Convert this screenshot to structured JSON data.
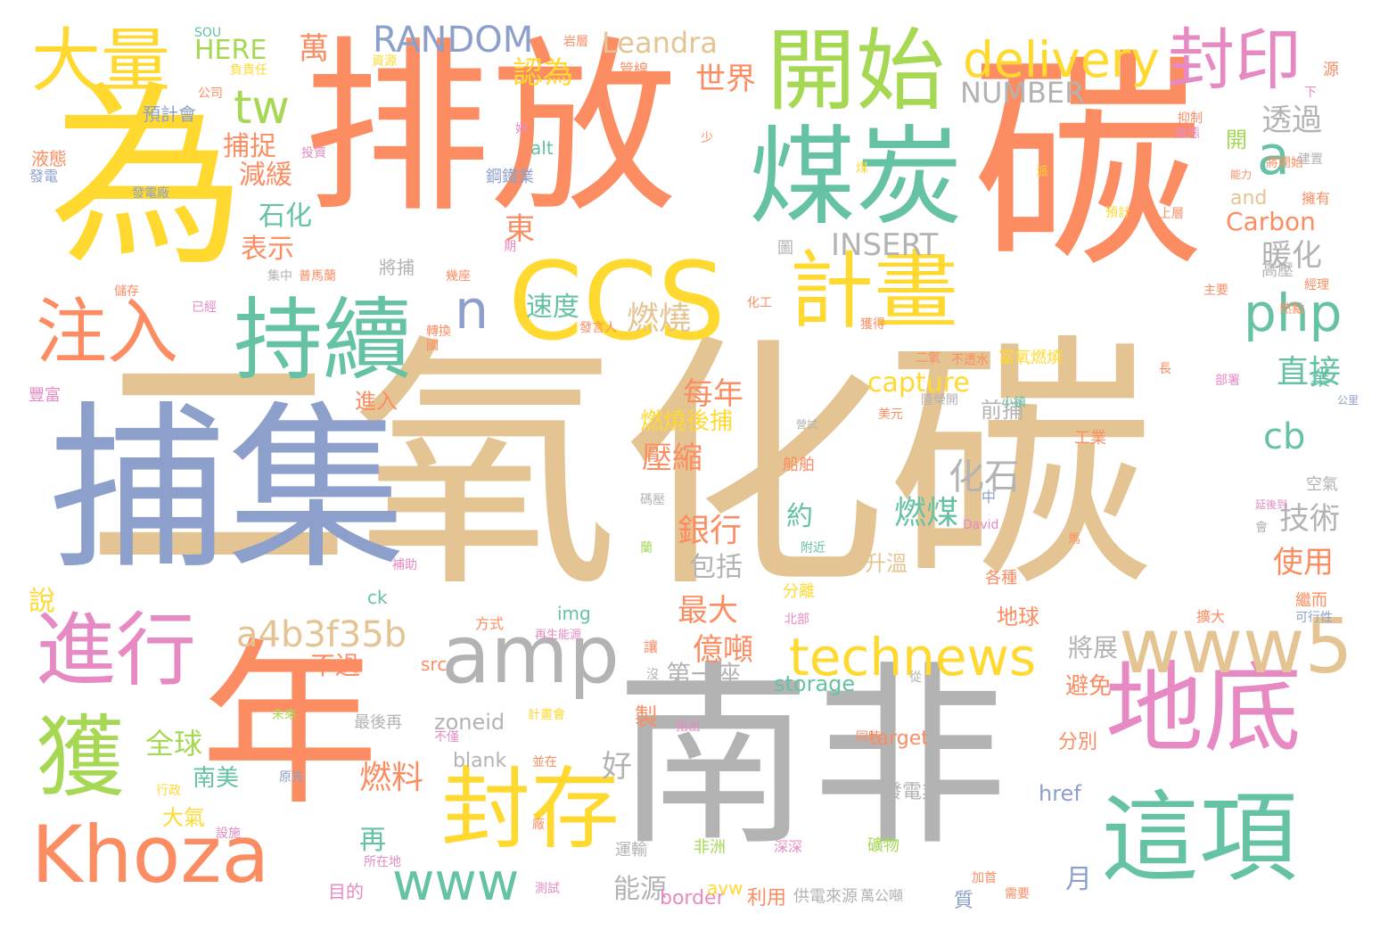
{
  "palette": {
    "orange": "#fc8d62",
    "yellow": "#ffd92f",
    "tan": "#e5c494",
    "blue": "#8da0cb",
    "green": "#a6d854",
    "teal": "#66c2a5",
    "pink": "#e78ac3",
    "gray": "#b3b3b3"
  },
  "words": [
    {
      "text": "二氧化碳",
      "color": "tan"
    },
    {
      "text": "排放",
      "color": "orange"
    },
    {
      "text": "碳",
      "color": "orange"
    },
    {
      "text": "為",
      "color": "yellow"
    },
    {
      "text": "捕集",
      "color": "blue"
    },
    {
      "text": "南非",
      "color": "gray"
    },
    {
      "text": "年",
      "color": "orange"
    },
    {
      "text": "CCS",
      "color": "yellow"
    },
    {
      "text": "煤炭",
      "color": "teal"
    },
    {
      "text": "開始",
      "color": "green"
    },
    {
      "text": "持續",
      "color": "teal"
    },
    {
      "text": "計畫",
      "color": "yellow"
    },
    {
      "text": "地底",
      "color": "pink"
    },
    {
      "text": "這項",
      "color": "teal"
    },
    {
      "text": "封存",
      "color": "yellow"
    },
    {
      "text": "Khoza",
      "color": "orange"
    },
    {
      "text": "amp",
      "color": "gray"
    },
    {
      "text": "www5",
      "color": "tan"
    },
    {
      "text": "進行",
      "color": "pink"
    },
    {
      "text": "獲",
      "color": "green"
    },
    {
      "text": "注入",
      "color": "orange"
    },
    {
      "text": "大量",
      "color": "yellow"
    },
    {
      "text": "封印",
      "color": "pink"
    },
    {
      "text": "delivery",
      "color": "yellow"
    },
    {
      "text": "technews",
      "color": "yellow"
    },
    {
      "text": "a4b3f35b",
      "color": "tan"
    },
    {
      "text": "www",
      "color": "teal"
    },
    {
      "text": "php",
      "color": "teal"
    },
    {
      "text": "a",
      "color": "teal"
    },
    {
      "text": "tw",
      "color": "green"
    },
    {
      "text": "RANDOM",
      "color": "blue"
    },
    {
      "text": "Leandra",
      "color": "tan"
    },
    {
      "text": "NUMBER",
      "color": "gray"
    },
    {
      "text": "INSERT",
      "color": "gray"
    },
    {
      "text": "Carbon",
      "color": "orange"
    },
    {
      "text": "capture",
      "color": "yellow"
    },
    {
      "text": "cb",
      "color": "teal"
    },
    {
      "text": "n",
      "color": "blue"
    },
    {
      "text": "萬",
      "color": "orange"
    },
    {
      "text": "HERE",
      "color": "green"
    },
    {
      "text": "認為",
      "color": "yellow"
    },
    {
      "text": "世界",
      "color": "orange"
    },
    {
      "text": "透過",
      "color": "gray"
    },
    {
      "text": "暖化",
      "color": "gray"
    },
    {
      "text": "捕捉",
      "color": "orange"
    },
    {
      "text": "減緩",
      "color": "orange"
    },
    {
      "text": "石化",
      "color": "teal"
    },
    {
      "text": "表示",
      "color": "orange"
    },
    {
      "text": "東",
      "color": "orange"
    },
    {
      "text": "速度",
      "color": "teal"
    },
    {
      "text": "燃燒",
      "color": "tan"
    },
    {
      "text": "每年",
      "color": "orange"
    },
    {
      "text": "直接",
      "color": "teal"
    },
    {
      "text": "燃燒後捕",
      "color": "yellow"
    },
    {
      "text": "前捕",
      "color": "gray"
    },
    {
      "text": "壓縮",
      "color": "orange"
    },
    {
      "text": "化石",
      "color": "gray"
    },
    {
      "text": "燃煤",
      "color": "teal"
    },
    {
      "text": "銀行",
      "color": "orange"
    },
    {
      "text": "約",
      "color": "teal"
    },
    {
      "text": "技術",
      "color": "gray"
    },
    {
      "text": "包括",
      "color": "gray"
    },
    {
      "text": "使用",
      "color": "orange"
    },
    {
      "text": "最大",
      "color": "orange"
    },
    {
      "text": "億噸",
      "color": "orange"
    },
    {
      "text": "不過",
      "color": "orange"
    },
    {
      "text": "第一座",
      "color": "gray"
    },
    {
      "text": "將展",
      "color": "gray"
    },
    {
      "text": "storage",
      "color": "teal"
    },
    {
      "text": "zoneid",
      "color": "gray"
    },
    {
      "text": "全球",
      "color": "green"
    },
    {
      "text": "好",
      "color": "gray"
    },
    {
      "text": "blank",
      "color": "gray"
    },
    {
      "text": "南美",
      "color": "teal"
    },
    {
      "text": "燃料",
      "color": "orange"
    },
    {
      "text": "大氣",
      "color": "yellow"
    },
    {
      "text": "再",
      "color": "teal"
    },
    {
      "text": "能源",
      "color": "gray"
    },
    {
      "text": "月",
      "color": "blue"
    },
    {
      "text": "避免",
      "color": "orange"
    },
    {
      "text": "target",
      "color": "orange"
    },
    {
      "text": "分別",
      "color": "orange"
    },
    {
      "text": "href",
      "color": "blue"
    },
    {
      "text": "發電業",
      "color": "gray"
    },
    {
      "text": "升溫",
      "color": "tan"
    },
    {
      "text": "地球",
      "color": "orange"
    },
    {
      "text": "border",
      "color": "pink"
    },
    {
      "text": "利用",
      "color": "orange"
    },
    {
      "text": "供電來源",
      "color": "gray"
    },
    {
      "text": "萬公噸",
      "color": "gray"
    },
    {
      "text": "img",
      "color": "teal"
    },
    {
      "text": "src",
      "color": "orange"
    },
    {
      "text": "alt",
      "color": "teal"
    },
    {
      "text": "ck",
      "color": "teal"
    },
    {
      "text": "and",
      "color": "tan"
    },
    {
      "text": "進入",
      "color": "orange"
    },
    {
      "text": "工業",
      "color": "orange"
    },
    {
      "text": "空氣",
      "color": "gray"
    },
    {
      "text": "說",
      "color": "yellow"
    },
    {
      "text": "將捕",
      "color": "gray"
    },
    {
      "text": "圖",
      "color": "gray"
    },
    {
      "text": "鋼鐵業",
      "color": "blue"
    },
    {
      "text": "預計會",
      "color": "blue"
    },
    {
      "text": "資源",
      "color": "yellow"
    },
    {
      "text": "管線",
      "color": "orange"
    },
    {
      "text": "液態",
      "color": "orange"
    },
    {
      "text": "發電",
      "color": "blue"
    },
    {
      "text": "船舶",
      "color": "orange"
    },
    {
      "text": "營試",
      "color": "gray"
    },
    {
      "text": "富氧燃燒",
      "color": "yellow"
    },
    {
      "text": "運輸",
      "color": "gray"
    },
    {
      "text": "非洲",
      "color": "green"
    },
    {
      "text": "深深",
      "color": "pink"
    },
    {
      "text": "礦物",
      "color": "green"
    },
    {
      "text": "目的",
      "color": "pink"
    },
    {
      "text": "質",
      "color": "blue"
    },
    {
      "text": "分離",
      "color": "yellow"
    },
    {
      "text": "各種",
      "color": "orange"
    },
    {
      "text": "繼而",
      "color": "orange"
    },
    {
      "text": "擴大",
      "color": "orange"
    },
    {
      "text": "可行性",
      "color": "blue"
    },
    {
      "text": "讓",
      "color": "orange"
    },
    {
      "text": "方式",
      "color": "orange"
    },
    {
      "text": "製",
      "color": "orange"
    },
    {
      "text": "最後再",
      "color": "gray"
    },
    {
      "text": "avw",
      "color": "yellow"
    },
    {
      "text": "豐富",
      "color": "pink"
    },
    {
      "text": "開",
      "color": "green"
    },
    {
      "text": "擁有",
      "color": "orange"
    },
    {
      "text": "高壓",
      "color": "gray"
    },
    {
      "text": "業",
      "color": "teal"
    },
    {
      "text": "延後到",
      "color": "pink"
    },
    {
      "text": "中",
      "color": "blue"
    },
    {
      "text": "附近",
      "color": "teal"
    },
    {
      "text": "不透水",
      "color": "orange"
    },
    {
      "text": "二氧",
      "color": "orange"
    },
    {
      "text": "SOU",
      "color": "teal"
    },
    {
      "text": "公司",
      "color": "orange"
    },
    {
      "text": "負責任",
      "color": "yellow"
    },
    {
      "text": "岩層",
      "color": "orange"
    },
    {
      "text": "下",
      "color": "pink"
    },
    {
      "text": "源",
      "color": "orange"
    },
    {
      "text": "擁態",
      "color": "pink"
    },
    {
      "text": "抑制",
      "color": "orange"
    },
    {
      "text": "將開始",
      "color": "orange"
    },
    {
      "text": "能力",
      "color": "orange"
    },
    {
      "text": "建置",
      "color": "gray"
    },
    {
      "text": "上層",
      "color": "orange"
    },
    {
      "text": "預計",
      "color": "yellow"
    },
    {
      "text": "經理",
      "color": "orange"
    },
    {
      "text": "主要",
      "color": "orange"
    },
    {
      "text": "熱點",
      "color": "orange"
    },
    {
      "text": "部署",
      "color": "pink"
    },
    {
      "text": "公里",
      "color": "blue"
    },
    {
      "text": "長",
      "color": "orange"
    },
    {
      "text": "小鎮",
      "color": "teal"
    },
    {
      "text": "獲得",
      "color": "orange"
    },
    {
      "text": "隆榮開",
      "color": "gray"
    },
    {
      "text": "美元",
      "color": "orange"
    },
    {
      "text": "化工",
      "color": "orange"
    },
    {
      "text": "發言人",
      "color": "orange"
    },
    {
      "text": "轉換",
      "color": "orange"
    },
    {
      "text": "國",
      "color": "orange"
    },
    {
      "text": "集中",
      "color": "gray"
    },
    {
      "text": "普馬蘭",
      "color": "orange"
    },
    {
      "text": "幾座",
      "color": "orange"
    },
    {
      "text": "儲存",
      "color": "orange"
    },
    {
      "text": "已經",
      "color": "pink"
    },
    {
      "text": "投資",
      "color": "pink"
    },
    {
      "text": "發電廠",
      "color": "blue"
    },
    {
      "text": "婷",
      "color": "pink"
    },
    {
      "text": "少",
      "color": "orange"
    },
    {
      "text": "期",
      "color": "pink"
    },
    {
      "text": "煤",
      "color": "yellow"
    },
    {
      "text": "派",
      "color": "yellow"
    },
    {
      "text": "補助",
      "color": "pink"
    },
    {
      "text": "北部",
      "color": "pink"
    },
    {
      "text": "再生能源",
      "color": "pink"
    },
    {
      "text": "沒",
      "color": "gray"
    },
    {
      "text": "從",
      "color": "gray"
    },
    {
      "text": "未來",
      "color": "green"
    },
    {
      "text": "不僅",
      "color": "pink"
    },
    {
      "text": "計畫會",
      "color": "yellow"
    },
    {
      "text": "指出",
      "color": "pink"
    },
    {
      "text": "同時",
      "color": "orange"
    },
    {
      "text": "並在",
      "color": "orange"
    },
    {
      "text": "行政",
      "color": "yellow"
    },
    {
      "text": "原先",
      "color": "blue"
    },
    {
      "text": "設施",
      "color": "pink"
    },
    {
      "text": "所在地",
      "color": "pink"
    },
    {
      "text": "廠",
      "color": "orange"
    },
    {
      "text": "測試",
      "color": "pink"
    },
    {
      "text": "加首",
      "color": "orange"
    },
    {
      "text": "需要",
      "color": "orange"
    },
    {
      "text": "David",
      "color": "pink"
    },
    {
      "text": "碼壓",
      "color": "gray"
    },
    {
      "text": "會",
      "color": "gray"
    },
    {
      "text": "馬",
      "color": "orange"
    },
    {
      "text": "蘭",
      "color": "green"
    }
  ]
}
